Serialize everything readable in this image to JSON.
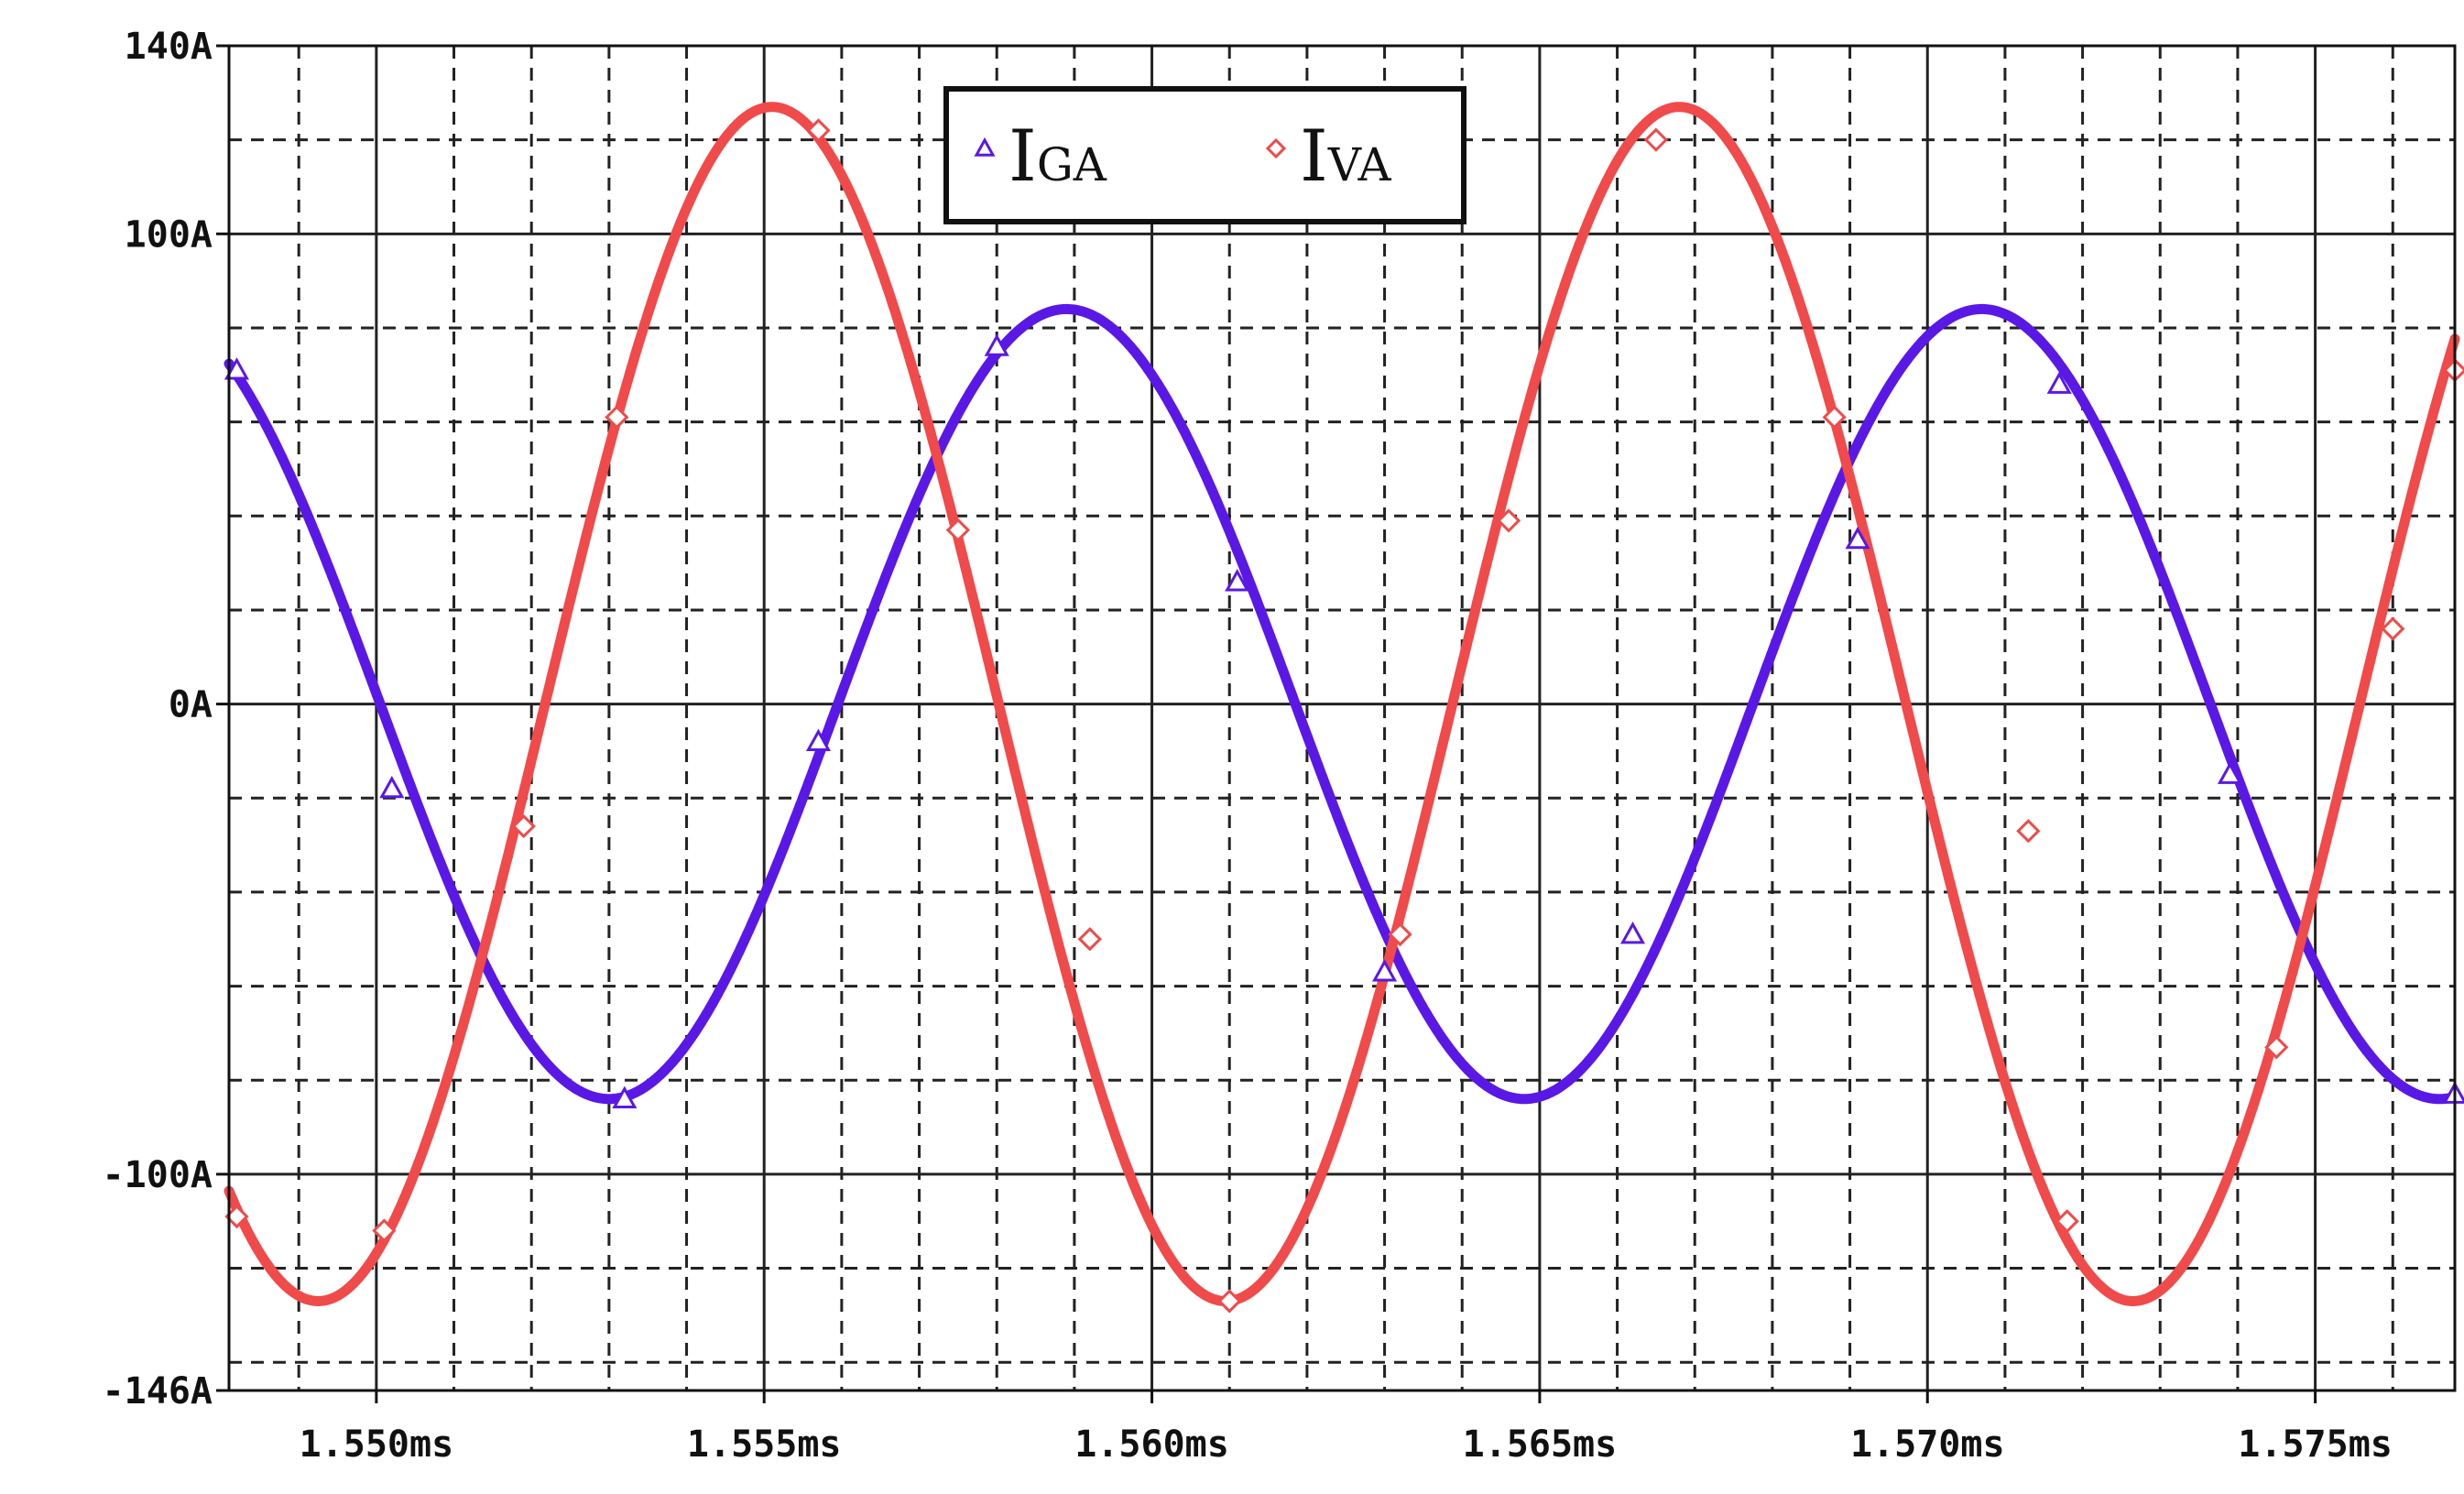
{
  "chart_data": {
    "type": "line",
    "title": "",
    "xlabel": "",
    "ylabel": "",
    "xlim": [
      1.5481,
      1.5768
    ],
    "ylim": [
      -146,
      140
    ],
    "x_unit": "ms",
    "y_unit": "A",
    "x_tick_values": [
      1.55,
      1.555,
      1.56,
      1.565,
      1.57,
      1.575
    ],
    "x_tick_labels": [
      "1.550ms",
      "1.555ms",
      "1.560ms",
      "1.565ms",
      "1.570ms",
      "1.575ms"
    ],
    "y_tick_values": [
      140,
      100,
      0,
      -100,
      -146
    ],
    "y_tick_labels": [
      "140A",
      "100A",
      "0A",
      "-100A",
      "-146A"
    ],
    "grid": true,
    "legend_position": "top-center",
    "series": [
      {
        "name": "IGA",
        "label_main": "I",
        "label_sub": "GA",
        "color": "#5a18e6",
        "marker": "triangle",
        "amplitude": 84,
        "period_ms": 0.0118,
        "peak_at_ms": 1.5589,
        "x": [
          1.5482,
          1.5502,
          1.5532,
          1.5557,
          1.558,
          1.5611,
          1.563,
          1.5662,
          1.5691,
          1.5717,
          1.5739,
          1.5768
        ],
        "y": [
          71,
          -18,
          -84,
          -8,
          76,
          26,
          -57,
          -49,
          35,
          68,
          -15,
          -83
        ]
      },
      {
        "name": "IVA",
        "label_main": "I",
        "label_sub": "VA",
        "color": "#f04a4a",
        "marker": "diamond",
        "amplitude": 127,
        "period_ms": 0.0117,
        "peak_at_ms": 1.5551,
        "x": [
          1.5482,
          1.5501,
          1.5519,
          1.5531,
          1.5557,
          1.5575,
          1.5592,
          1.561,
          1.5632,
          1.5646,
          1.5665,
          1.5688,
          1.5713,
          1.5718,
          1.5745,
          1.576,
          1.5768
        ],
        "y": [
          -109,
          -112,
          -26,
          61,
          122,
          37,
          -50,
          -127,
          -49,
          39,
          120,
          61,
          -27,
          -110,
          -73,
          16,
          71
        ]
      }
    ]
  }
}
